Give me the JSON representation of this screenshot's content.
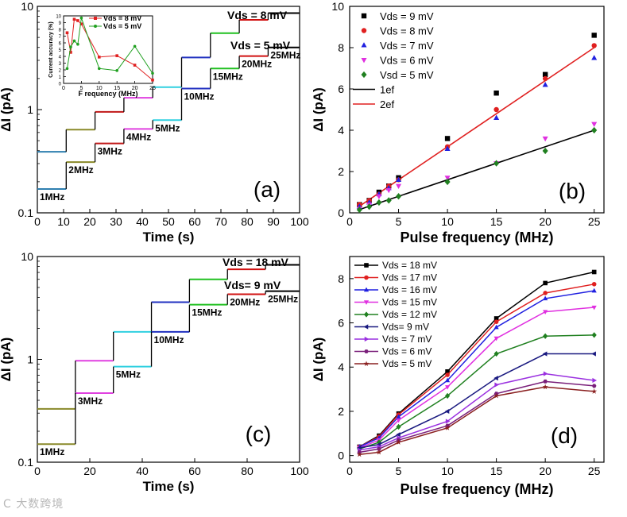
{
  "watermark": "C 大数跨境",
  "panels": {
    "a": {
      "label": "(a)",
      "xlabel": "Time (s)",
      "ylabel": "ΔI (pA)",
      "xticks": [
        "0",
        "10",
        "20",
        "30",
        "40",
        "50",
        "60",
        "70",
        "80",
        "90",
        "100"
      ],
      "yticks": [
        "0.1",
        "1",
        "10"
      ],
      "anno_top": "Vds = 8 mV",
      "anno_mid": "Vds = 5 mV",
      "freq_labels": [
        "1MHz",
        "2MHz",
        "3MHz",
        "4MHz",
        "5MHz",
        "10MHz",
        "15MHz",
        "20MHz",
        "25MHz"
      ],
      "inset": {
        "xlabel": "F requency (MHz)",
        "ylabel": "Current accuracy (%)",
        "xticks": [
          "0",
          "5",
          "10",
          "15",
          "20",
          "25"
        ],
        "yticks": [
          "0",
          "1",
          "2",
          "3",
          "4",
          "5",
          "6",
          "7",
          "8",
          "9",
          "10"
        ],
        "legend": [
          "Vds = 8 mV",
          "Vds = 5 mV"
        ]
      }
    },
    "b": {
      "label": "(b)",
      "xlabel": "Pulse frequency (MHz)",
      "ylabel": "ΔI (pA)",
      "xticks": [
        "0",
        "5",
        "10",
        "15",
        "20",
        "25"
      ],
      "yticks": [
        "0",
        "2",
        "4",
        "6",
        "8",
        "10"
      ],
      "legend": [
        "Vds = 9 mV",
        "Vds = 8 mV",
        "Vds = 7 mV",
        "Vds = 6 mV",
        "Vsd = 5 mV",
        "1ef",
        "2ef"
      ]
    },
    "c": {
      "label": "(c)",
      "xlabel": "Time (s)",
      "ylabel": "ΔI (pA)",
      "xticks": [
        "0",
        "20",
        "40",
        "60",
        "80",
        "100"
      ],
      "yticks": [
        "0.1",
        "1",
        "10"
      ],
      "anno_top": "Vds = 18 mV",
      "anno_mid": "Vds= 9 mV",
      "freq_labels": [
        "1MHz",
        "3MHz",
        "5MHz",
        "10MHz",
        "15MHz",
        "20MHz",
        "25MHz"
      ]
    },
    "d": {
      "label": "(d)",
      "xlabel": "Pulse frequency (MHz)",
      "ylabel": "ΔI (pA)",
      "xticks": [
        "0",
        "5",
        "10",
        "15",
        "20",
        "25"
      ],
      "yticks": [
        "0",
        "2",
        "4",
        "6",
        "8"
      ]
    }
  },
  "chart_data": [
    {
      "panel": "a",
      "type": "line",
      "xlabel": "Time (s)",
      "ylabel": "ΔI (pA)",
      "xlim": [
        0,
        100
      ],
      "ylim": [
        0.1,
        10
      ],
      "yscale": "log",
      "grid": false,
      "series": [
        {
          "name": "Vds = 8 mV",
          "segments": [
            {
              "t": [
                0,
                11
              ],
              "value": 0.39,
              "label": "1MHz",
              "color": "#2f7fb0"
            },
            {
              "t": [
                11,
                22
              ],
              "value": 0.64,
              "label": "2MHz",
              "color": "#8a8a2a"
            },
            {
              "t": [
                22,
                33
              ],
              "value": 0.95,
              "label": "3MHz",
              "color": "#c01818"
            },
            {
              "t": [
                33,
                44
              ],
              "value": 1.3,
              "label": "4MHz",
              "color": "#e040e0"
            },
            {
              "t": [
                44,
                55
              ],
              "value": 1.65,
              "label": "5MHz",
              "color": "#30d0e0"
            },
            {
              "t": [
                55,
                66
              ],
              "value": 3.2,
              "label": "10MHz",
              "color": "#2030c0"
            },
            {
              "t": [
                66,
                77
              ],
              "value": 5.5,
              "label": "15MHz",
              "color": "#20c020"
            },
            {
              "t": [
                77,
                88
              ],
              "value": 7.4,
              "label": "20MHz",
              "color": "#d01010"
            },
            {
              "t": [
                88,
                100
              ],
              "value": 8.6,
              "label": "25MHz",
              "color": "#000000"
            }
          ]
        },
        {
          "name": "Vds = 5 mV",
          "segments": [
            {
              "t": [
                0,
                11
              ],
              "value": 0.17,
              "label": "1MHz",
              "color": "#2f7fb0"
            },
            {
              "t": [
                11,
                22
              ],
              "value": 0.31,
              "label": "2MHz",
              "color": "#8a8a2a"
            },
            {
              "t": [
                22,
                33
              ],
              "value": 0.47,
              "label": "3MHz",
              "color": "#c01818"
            },
            {
              "t": [
                33,
                44
              ],
              "value": 0.65,
              "label": "4MHz",
              "color": "#e040e0"
            },
            {
              "t": [
                44,
                55
              ],
              "value": 0.79,
              "label": "5MHz",
              "color": "#30d0e0"
            },
            {
              "t": [
                55,
                66
              ],
              "value": 1.6,
              "label": "10MHz",
              "color": "#2030c0"
            },
            {
              "t": [
                66,
                77
              ],
              "value": 2.5,
              "label": "15MHz",
              "color": "#20c020"
            },
            {
              "t": [
                77,
                88
              ],
              "value": 3.3,
              "label": "20MHz",
              "color": "#d01010"
            },
            {
              "t": [
                88,
                100
              ],
              "value": 4.0,
              "label": "25MHz",
              "color": "#000000"
            }
          ]
        }
      ],
      "inset": {
        "type": "line",
        "xlabel": "F requency (MHz)",
        "ylabel": "Current accuracy (%)",
        "xlim": [
          0,
          25
        ],
        "ylim": [
          0,
          10
        ],
        "series": [
          {
            "name": "Vds = 8 mV",
            "color": "#e02020",
            "x": [
              1,
              2,
              3,
              4,
              5,
              10,
              15,
              20,
              25
            ],
            "y": [
              7.5,
              4.6,
              9.5,
              9.3,
              8.8,
              3.9,
              4.1,
              2.7,
              0.5
            ]
          },
          {
            "name": "Vds = 5 mV",
            "color": "#20a020",
            "x": [
              1,
              2,
              3,
              4,
              5,
              10,
              15,
              20,
              25
            ],
            "y": [
              2.2,
              5.4,
              6.3,
              5.8,
              9.7,
              2.2,
              1.9,
              5.5,
              1.5
            ]
          }
        ]
      }
    },
    {
      "panel": "b",
      "type": "scatter",
      "xlabel": "Pulse frequency (MHz)",
      "ylabel": "ΔI (pA)",
      "xlim": [
        0,
        26
      ],
      "ylim": [
        0,
        10
      ],
      "legend_position": "top-left",
      "series": [
        {
          "name": "Vds = 9 mV",
          "marker": "square",
          "color": "#000000",
          "x": [
            1,
            2,
            3,
            4,
            5,
            10,
            15,
            20,
            25
          ],
          "y": [
            0.4,
            0.6,
            1.0,
            1.3,
            1.7,
            3.6,
            5.8,
            6.7,
            8.6
          ]
        },
        {
          "name": "Vds = 8 mV",
          "marker": "circle",
          "color": "#e02020",
          "x": [
            1,
            2,
            3,
            4,
            5,
            10,
            15,
            20,
            25
          ],
          "y": [
            0.4,
            0.6,
            0.9,
            1.3,
            1.6,
            3.2,
            5.0,
            6.5,
            8.1
          ]
        },
        {
          "name": "Vds = 7 mV",
          "marker": "triangle-up",
          "color": "#2020e0",
          "x": [
            1,
            2,
            3,
            4,
            5,
            10,
            15,
            20,
            25
          ],
          "y": [
            0.3,
            0.5,
            0.9,
            1.2,
            1.6,
            3.1,
            4.6,
            6.2,
            7.5
          ]
        },
        {
          "name": "Vds = 6 mV",
          "marker": "triangle-down",
          "color": "#e030e0",
          "x": [
            1,
            2,
            3,
            4,
            5,
            10,
            15,
            20,
            25
          ],
          "y": [
            0.2,
            0.4,
            0.8,
            1.1,
            1.3,
            1.7,
            2.4,
            3.6,
            4.3
          ]
        },
        {
          "name": "Vsd = 5 mV",
          "marker": "diamond",
          "color": "#208020",
          "x": [
            1,
            2,
            3,
            4,
            5,
            10,
            15,
            20,
            25
          ],
          "y": [
            0.15,
            0.3,
            0.5,
            0.6,
            0.8,
            1.5,
            2.4,
            3.0,
            4.0
          ]
        },
        {
          "name": "1ef",
          "type": "line",
          "color": "#000000",
          "x": [
            1,
            25
          ],
          "y": [
            0.16,
            4.0
          ]
        },
        {
          "name": "2ef",
          "type": "line",
          "color": "#e02020",
          "x": [
            1,
            25
          ],
          "y": [
            0.32,
            8.0
          ]
        }
      ]
    },
    {
      "panel": "c",
      "type": "line",
      "xlabel": "Time (s)",
      "ylabel": "ΔI (pA)",
      "xlim": [
        0,
        100
      ],
      "ylim": [
        0.1,
        10
      ],
      "yscale": "log",
      "series": [
        {
          "name": "Vds = 18 mV",
          "segments": [
            {
              "t": [
                0,
                14.5
              ],
              "value": 0.33,
              "label": "1MHz",
              "color": "#8a8a2a"
            },
            {
              "t": [
                14.5,
                29
              ],
              "value": 0.97,
              "label": "3MHz",
              "color": "#e040e0"
            },
            {
              "t": [
                29,
                43.5
              ],
              "value": 1.85,
              "label": "5MHz",
              "color": "#30d0e0"
            },
            {
              "t": [
                43.5,
                58
              ],
              "value": 3.6,
              "label": "10MHz",
              "color": "#2030c0"
            },
            {
              "t": [
                58,
                72.5
              ],
              "value": 6.0,
              "label": "15MHz",
              "color": "#20c020"
            },
            {
              "t": [
                72.5,
                87
              ],
              "value": 7.5,
              "label": "20MHz",
              "color": "#d01010"
            },
            {
              "t": [
                87,
                100
              ],
              "value": 8.3,
              "label": "25MHz",
              "color": "#000000"
            }
          ]
        },
        {
          "name": "Vds= 9 mV",
          "segments": [
            {
              "t": [
                0,
                14.5
              ],
              "value": 0.15,
              "label": "1MHz",
              "color": "#8a8a2a"
            },
            {
              "t": [
                14.5,
                29
              ],
              "value": 0.47,
              "label": "3MHz",
              "color": "#e040e0"
            },
            {
              "t": [
                29,
                43.5
              ],
              "value": 0.85,
              "label": "5MHz",
              "color": "#30d0e0"
            },
            {
              "t": [
                43.5,
                58
              ],
              "value": 1.85,
              "label": "10MHz",
              "color": "#2030c0"
            },
            {
              "t": [
                58,
                72.5
              ],
              "value": 3.4,
              "label": "15MHz",
              "color": "#20c020"
            },
            {
              "t": [
                72.5,
                87
              ],
              "value": 4.3,
              "label": "20MHz",
              "color": "#d01010"
            },
            {
              "t": [
                87,
                100
              ],
              "value": 4.6,
              "label": "25MHz",
              "color": "#000000"
            }
          ]
        }
      ]
    },
    {
      "panel": "d",
      "type": "line",
      "xlabel": "Pulse frequency (MHz)",
      "ylabel": "ΔI (pA)",
      "xlim": [
        0,
        26
      ],
      "ylim": [
        -0.3,
        9
      ],
      "legend_position": "top-left",
      "x": [
        1,
        3,
        5,
        10,
        15,
        20,
        25
      ],
      "series": [
        {
          "name": "Vds = 18 mV",
          "marker": "square",
          "color": "#000000",
          "values": [
            0.4,
            0.9,
            1.9,
            3.8,
            6.2,
            7.8,
            8.3
          ]
        },
        {
          "name": "Vds = 17 mV",
          "marker": "circle",
          "color": "#e02020",
          "values": [
            0.4,
            0.85,
            1.85,
            3.65,
            6.05,
            7.35,
            7.75
          ]
        },
        {
          "name": "Vds = 16 mV",
          "marker": "triangle-up",
          "color": "#2020e0",
          "values": [
            0.4,
            0.8,
            1.75,
            3.4,
            5.8,
            7.1,
            7.45
          ]
        },
        {
          "name": "Vds = 15 mV",
          "marker": "triangle-down",
          "color": "#e030e0",
          "values": [
            0.35,
            0.7,
            1.6,
            3.1,
            5.3,
            6.5,
            6.7
          ]
        },
        {
          "name": "Vds = 12 mV",
          "marker": "diamond",
          "color": "#208020",
          "values": [
            0.3,
            0.6,
            1.3,
            2.7,
            4.6,
            5.4,
            5.45
          ]
        },
        {
          "name": "Vds= 9 mV",
          "marker": "triangle-left",
          "color": "#1a1a80",
          "values": [
            0.35,
            0.5,
            0.95,
            2.0,
            3.5,
            4.6,
            4.6
          ]
        },
        {
          "name": "Vds = 7 mV",
          "marker": "triangle-right",
          "color": "#9a30e0",
          "values": [
            0.25,
            0.4,
            0.8,
            1.55,
            3.2,
            3.7,
            3.4
          ]
        },
        {
          "name": "Vds = 6 mV",
          "marker": "hexagon",
          "color": "#7a1f7a",
          "values": [
            0.15,
            0.3,
            0.7,
            1.35,
            2.8,
            3.35,
            3.15
          ]
        },
        {
          "name": "Vds = 5 mV",
          "marker": "star",
          "color": "#8a2020",
          "values": [
            0.05,
            0.15,
            0.6,
            1.25,
            2.7,
            3.1,
            2.9
          ]
        }
      ]
    }
  ]
}
